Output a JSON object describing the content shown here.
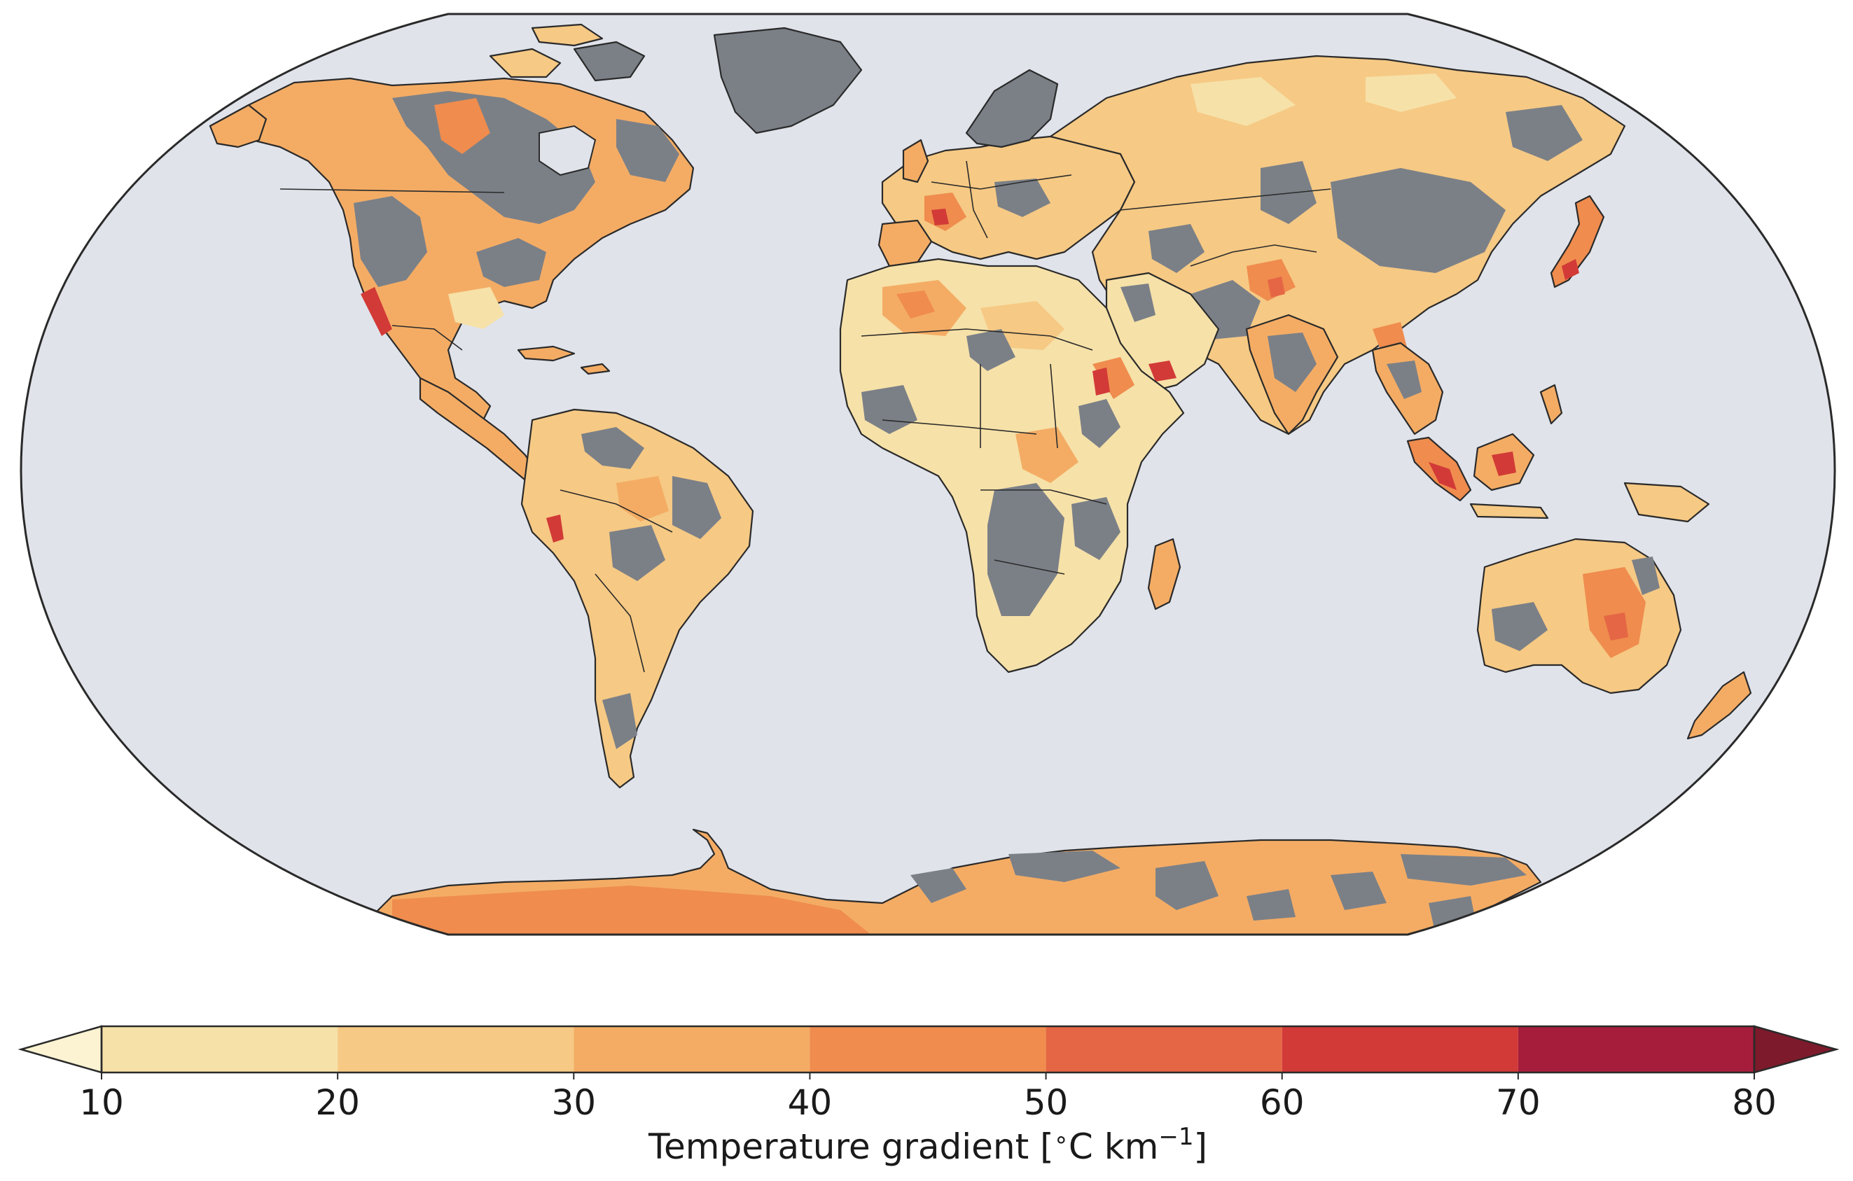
{
  "map": {
    "projection": "Robinson",
    "ocean_color": "#e0e3ea",
    "nodata_color": "#7b8087",
    "coastline_color": "#2a2a2a"
  },
  "colorbar": {
    "label_main": "Temperature gradient [",
    "label_degree": "∘",
    "label_unit": "C km",
    "label_exp": "−1",
    "label_close": "]",
    "ticks": [
      "10",
      "20",
      "30",
      "40",
      "50",
      "60",
      "70",
      "80"
    ],
    "under_color": "#fbf3d2",
    "over_color": "#7d1a2b",
    "bins": [
      {
        "min": 10,
        "max": 20,
        "color": "#f6e1a8"
      },
      {
        "min": 20,
        "max": 30,
        "color": "#f6c984"
      },
      {
        "min": 30,
        "max": 40,
        "color": "#f4ac64"
      },
      {
        "min": 40,
        "max": 50,
        "color": "#ef8c4e"
      },
      {
        "min": 50,
        "max": 60,
        "color": "#e56644"
      },
      {
        "min": 60,
        "max": 70,
        "color": "#d23a37"
      },
      {
        "min": 70,
        "max": 80,
        "color": "#a61d3b"
      }
    ],
    "extend": "both"
  }
}
